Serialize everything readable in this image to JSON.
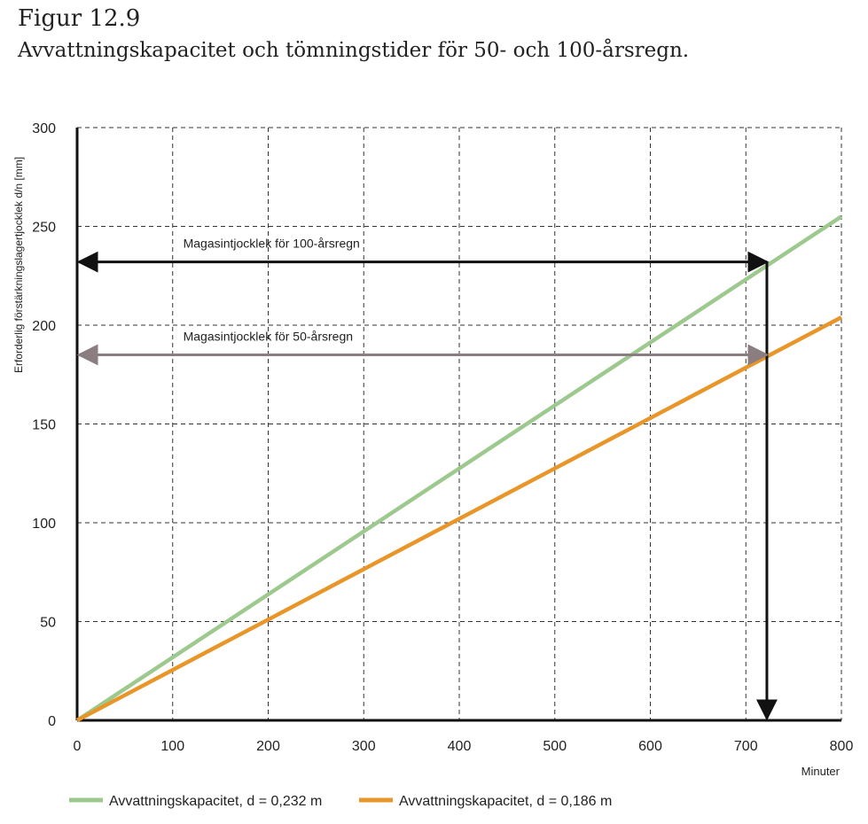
{
  "figure": {
    "label": "Figur 12.9",
    "title": "Avvattningskapacitet och tömningstider för 50- och 100-årsregn."
  },
  "chart_data": {
    "type": "line",
    "xlabel": "Minuter",
    "ylabel": "Erforderlig förstärkningslagertjocklek d/n [mm]",
    "xlim": [
      0,
      800
    ],
    "ylim": [
      0,
      300
    ],
    "xticks": [
      0,
      100,
      200,
      300,
      400,
      500,
      600,
      700,
      800
    ],
    "yticks": [
      0,
      50,
      100,
      150,
      200,
      250,
      300
    ],
    "grid": true,
    "legend_position": "bottom",
    "series": [
      {
        "name": "Avvattningskapacitet, d = 0,232 m",
        "color": "#9dc98f",
        "x": [
          0,
          800
        ],
        "y": [
          0,
          255
        ]
      },
      {
        "name": "Avvattningskapacitet, d = 0,186 m",
        "color": "#e8962a",
        "x": [
          0,
          800
        ],
        "y": [
          0,
          204
        ]
      }
    ],
    "annotations": [
      {
        "text": "Magasintjocklek för 100-årsregn",
        "color": "#111111",
        "y": 232,
        "x_end": 722,
        "vertical_drop": true
      },
      {
        "text": "Magasintjocklek för 50-årsregn",
        "color": "#8a7e80",
        "y": 185,
        "x_end": 722,
        "vertical_drop": false
      }
    ]
  }
}
